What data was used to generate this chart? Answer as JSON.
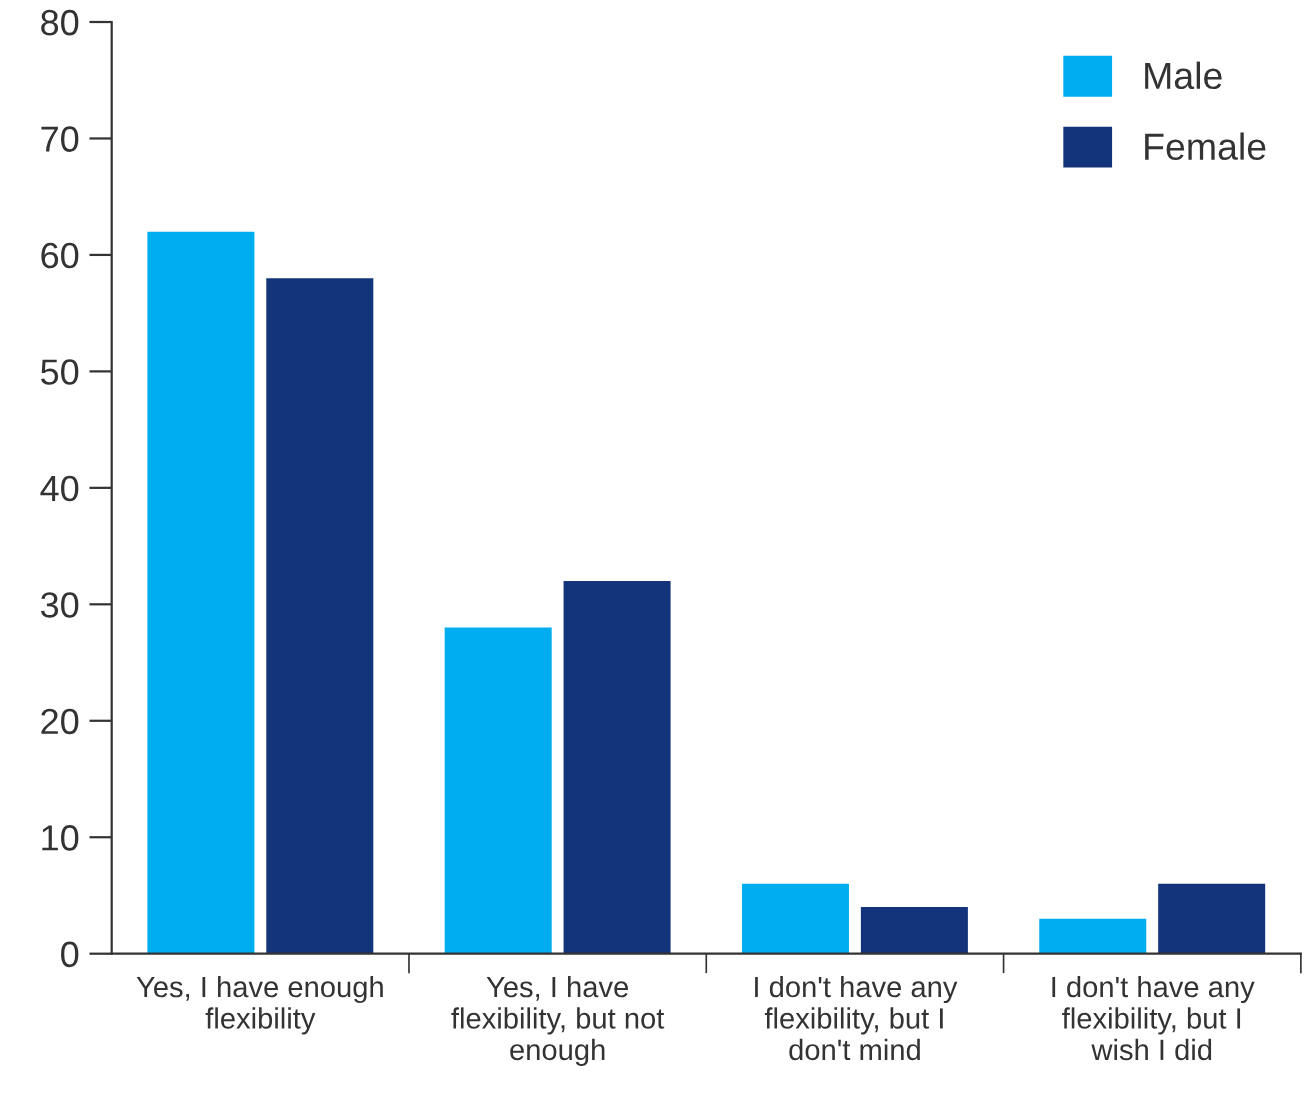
{
  "chart_data": {
    "type": "bar",
    "categories": [
      "Yes, I have enough\nflexibility",
      "Yes, I have\nflexibility, but not\nenough",
      "I don't have any\nflexibility, but I\ndon't mind",
      "I don't have any\nflexibility, but I\nwish I did"
    ],
    "series": [
      {
        "name": "Male",
        "color": "#00aeef",
        "values": [
          62,
          28,
          6,
          3
        ]
      },
      {
        "name": "Female",
        "color": "#13337a",
        "values": [
          58,
          32,
          4,
          6
        ]
      }
    ],
    "ylim": [
      0,
      80
    ],
    "yticks": [
      0,
      10,
      20,
      30,
      40,
      50,
      60,
      70,
      80
    ],
    "grid": false,
    "legend": "top right"
  }
}
